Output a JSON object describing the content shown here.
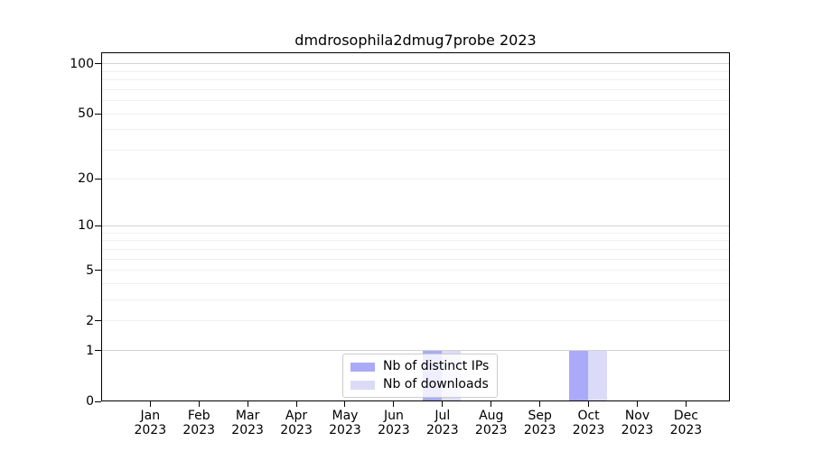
{
  "title": "dmdrosophila2dmug7probe 2023",
  "chart_data": {
    "type": "bar",
    "months": [
      "Jan",
      "Feb",
      "Mar",
      "Apr",
      "May",
      "Jun",
      "Jul",
      "Aug",
      "Sep",
      "Oct",
      "Nov",
      "Dec"
    ],
    "year": "2023",
    "categories": [
      "Jan 2023",
      "Feb 2023",
      "Mar 2023",
      "Apr 2023",
      "May 2023",
      "Jun 2023",
      "Jul 2023",
      "Aug 2023",
      "Sep 2023",
      "Oct 2023",
      "Nov 2023",
      "Dec 2023"
    ],
    "series": [
      {
        "name": "Nb of distinct IPs",
        "color": "#aaaaf8",
        "values": [
          0,
          0,
          0,
          0,
          0,
          0,
          1,
          0,
          0,
          1,
          0,
          0
        ]
      },
      {
        "name": "Nb of downloads",
        "color": "#dbdbf9",
        "values": [
          0,
          0,
          0,
          0,
          0,
          0,
          1,
          0,
          0,
          1,
          0,
          0
        ]
      }
    ],
    "yscale": "log1p",
    "y_ticks": [
      0,
      1,
      2,
      5,
      10,
      20,
      50,
      100
    ],
    "y_major_gridlines": [
      1,
      10,
      100
    ],
    "y_minor_gridlines": [
      2,
      3,
      4,
      5,
      6,
      7,
      8,
      9,
      20,
      30,
      40,
      50,
      60,
      70,
      80,
      90
    ],
    "ylim": [
      0,
      117
    ],
    "xlabel": "",
    "ylabel": "",
    "grid": "on",
    "legend_position": "lower center",
    "colors": {
      "axis": "#000000",
      "grid_major": "#d2d2d2",
      "grid_minor": "#f0f0f0",
      "background": "#ffffff",
      "text": "#000000",
      "legend_border": "#cccccc"
    }
  }
}
